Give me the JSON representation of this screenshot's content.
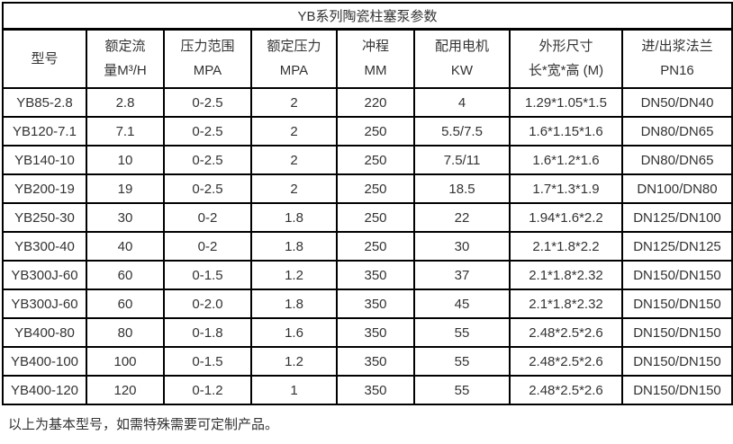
{
  "title": "YB系列陶瓷柱塞泵参数",
  "columns": [
    {
      "line1": "型号",
      "line2": ""
    },
    {
      "line1": "额定流",
      "line2": "量M³/H"
    },
    {
      "line1": "压力范围",
      "line2": "MPA"
    },
    {
      "line1": "额定压力",
      "line2": "MPA"
    },
    {
      "line1": "冲程",
      "line2": "MM"
    },
    {
      "line1": "配用电机",
      "line2": "KW"
    },
    {
      "line1": "外形尺寸",
      "line2": "长*宽*高 (M)"
    },
    {
      "line1": "进/出浆法兰",
      "line2": "PN16"
    }
  ],
  "rows": [
    [
      "YB85-2.8",
      "2.8",
      "0-2.5",
      "2",
      "220",
      "4",
      "1.29*1.05*1.5",
      "DN50/DN40"
    ],
    [
      "YB120-7.1",
      "7.1",
      "0-2.5",
      "2",
      "250",
      "5.5/7.5",
      "1.6*1.15*1.6",
      "DN80/DN65"
    ],
    [
      "YB140-10",
      "10",
      "0-2.5",
      "2",
      "250",
      "7.5/11",
      "1.6*1.2*1.6",
      "DN80/DN65"
    ],
    [
      "YB200-19",
      "19",
      "0-2.5",
      "2",
      "250",
      "18.5",
      "1.7*1.3*1.9",
      "DN100/DN80"
    ],
    [
      "YB250-30",
      "30",
      "0-2",
      "1.8",
      "250",
      "22",
      "1.94*1.6*2.2",
      "DN125/DN100"
    ],
    [
      "YB300-40",
      "40",
      "0-2",
      "1.8",
      "250",
      "30",
      "2.1*1.8*2.2",
      "DN125/DN125"
    ],
    [
      "YB300J-60",
      "60",
      "0-1.5",
      "1.2",
      "350",
      "37",
      "2.1*1.8*2.32",
      "DN150/DN150"
    ],
    [
      "YB300J-60",
      "60",
      "0-2.0",
      "1.8",
      "350",
      "45",
      "2.1*1.8*2.32",
      "DN150/DN150"
    ],
    [
      "YB400-80",
      "80",
      "0-1.8",
      "1.6",
      "350",
      "55",
      "2.48*2.5*2.6",
      "DN150/DN150"
    ],
    [
      "YB400-100",
      "100",
      "0-1.5",
      "1.2",
      "350",
      "55",
      "2.48*2.5*2.6",
      "DN150/DN150"
    ],
    [
      "YB400-120",
      "120",
      "0-1.2",
      "1",
      "350",
      "55",
      "2.48*2.5*2.6",
      "DN150/DN150"
    ]
  ],
  "footer_note": "以上为基本型号，如需特殊需要可定制产品。",
  "colors": {
    "border": "#000000",
    "text": "#333333",
    "background": "#ffffff"
  }
}
